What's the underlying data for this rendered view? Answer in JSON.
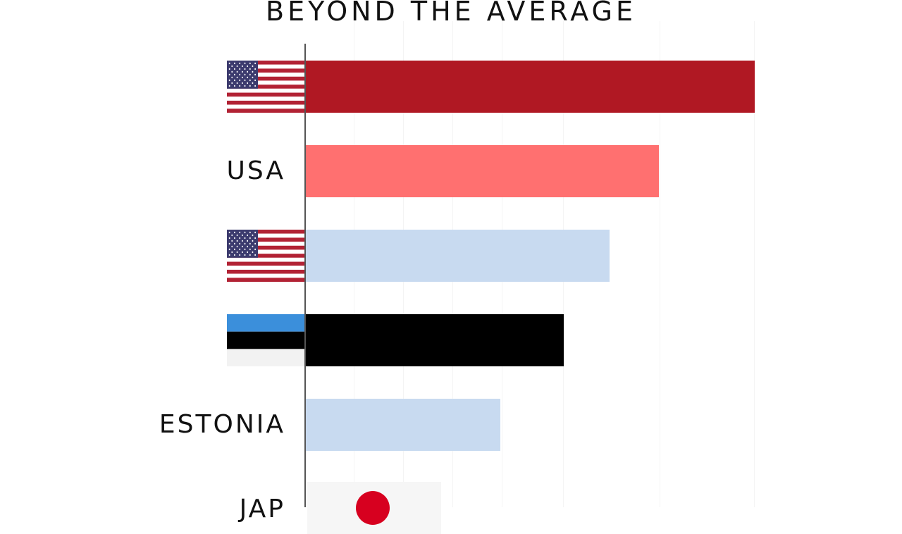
{
  "title": "BEYOND THE AVERAGE",
  "chart_data": {
    "type": "bar",
    "orientation": "horizontal",
    "xlim": [
      0,
      100
    ],
    "grid": true,
    "rows": [
      {
        "label": "",
        "flag": "usa-flag-icon",
        "value": 100,
        "color": "#B01823"
      },
      {
        "label": "USA",
        "flag": null,
        "value": 78.7,
        "color": "#FF7070"
      },
      {
        "label": "",
        "flag": "usa-flag-icon",
        "value": 67.6,
        "color": "#C8DAF0"
      },
      {
        "label": "",
        "flag": "estonia-flag-icon",
        "value": 57.4,
        "color": "#000000"
      },
      {
        "label": "ESTONIA",
        "flag": null,
        "value": 43.3,
        "color": "#C8DAF0"
      },
      {
        "label": "JAP",
        "flag": "japan-flag-icon",
        "value": 0,
        "color": "#C8DAF0"
      }
    ]
  }
}
